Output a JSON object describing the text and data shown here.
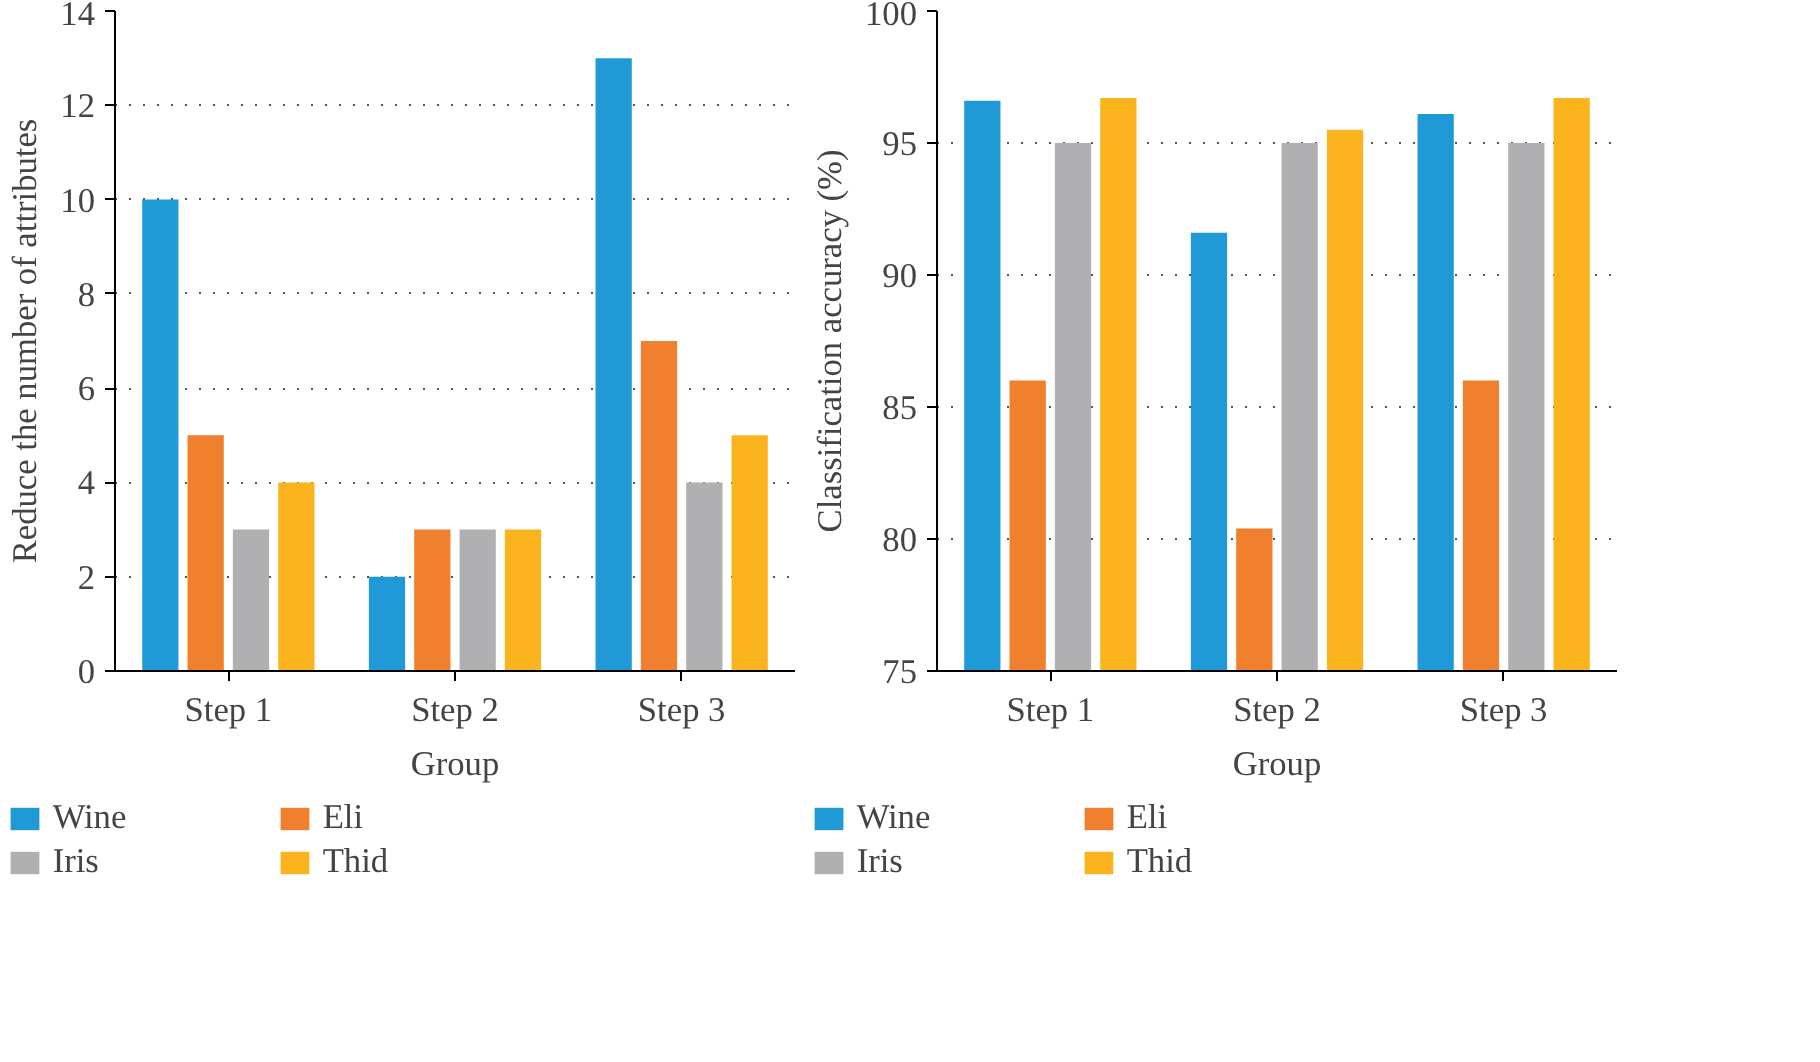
{
  "chart_data": [
    {
      "type": "bar",
      "xlabel": "Group",
      "ylabel": "Reduce the number of attributes",
      "categories": [
        "Step 1",
        "Step 2",
        "Step 3"
      ],
      "ylim": [
        0,
        14
      ],
      "yticks": [
        0,
        2,
        4,
        6,
        8,
        10,
        12,
        14
      ],
      "grid": "y",
      "legend": "bottom",
      "series": [
        {
          "name": "Wine",
          "color": "#1f9ad6",
          "values": [
            10,
            2,
            13
          ]
        },
        {
          "name": "Eli",
          "color": "#f07f2e",
          "values": [
            5,
            3,
            7
          ]
        },
        {
          "name": "Iris",
          "color": "#b0b0b2",
          "values": [
            3,
            3,
            4
          ]
        },
        {
          "name": "Thid",
          "color": "#fbb41d",
          "values": [
            4,
            3,
            5
          ]
        }
      ]
    },
    {
      "type": "bar",
      "xlabel": "Group",
      "ylabel": "Classification accuracy (%)",
      "categories": [
        "Step 1",
        "Step 2",
        "Step 3"
      ],
      "ylim": [
        75,
        100
      ],
      "yticks": [
        75,
        80,
        85,
        90,
        95,
        100
      ],
      "grid": "y",
      "legend": "bottom",
      "series": [
        {
          "name": "Wine",
          "color": "#1f9ad6",
          "values": [
            96.6,
            91.6,
            96.1
          ]
        },
        {
          "name": "Eli",
          "color": "#f07f2e",
          "values": [
            86,
            80.4,
            86
          ]
        },
        {
          "name": "Iris",
          "color": "#b0b0b2",
          "values": [
            95,
            95,
            95
          ]
        },
        {
          "name": "Thid",
          "color": "#fbb41d",
          "values": [
            96.7,
            95.5,
            96.7
          ]
        }
      ]
    }
  ]
}
